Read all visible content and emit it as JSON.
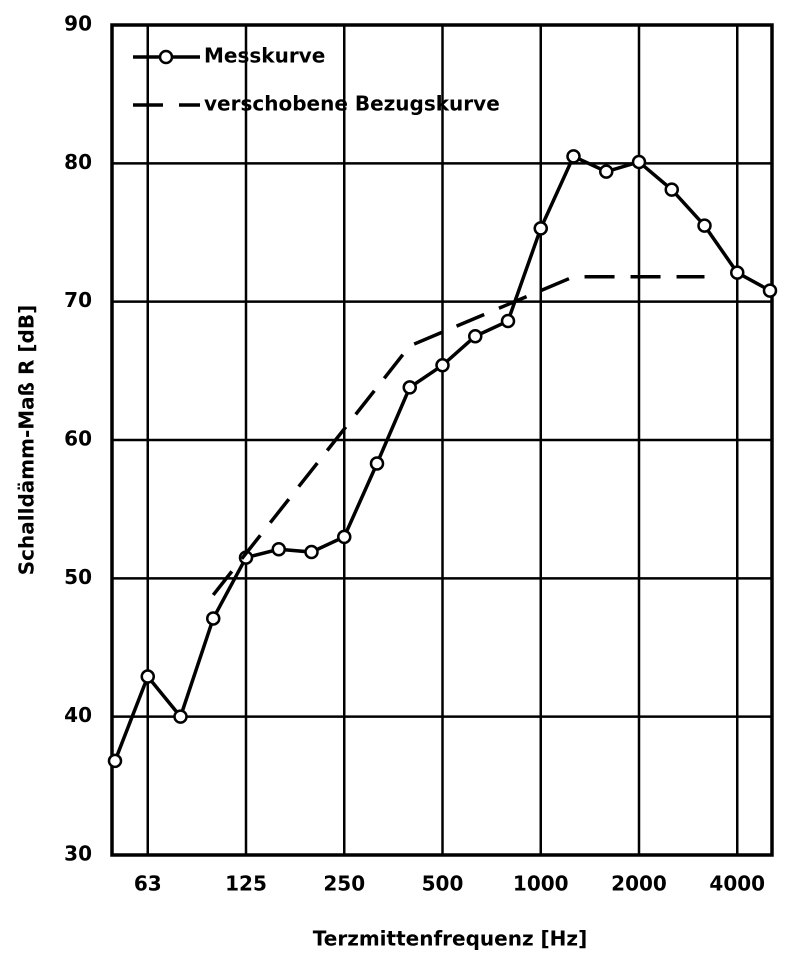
{
  "chart_data": {
    "type": "line",
    "x_label": "Terzmittenfrequenz [Hz]",
    "y_label": "Schalldämm-Maß R [dB]",
    "categories": [
      null,
      "63",
      null,
      null,
      "125",
      null,
      null,
      "250",
      null,
      null,
      "500",
      null,
      null,
      "1000",
      null,
      null,
      "2000",
      null,
      null,
      "4000",
      null
    ],
    "series": [
      {
        "name": "Messkurve",
        "color": "#000000",
        "style": "solid-marker",
        "values": [
          36.8,
          42.9,
          40.0,
          47.1,
          51.5,
          52.1,
          51.9,
          53.0,
          58.3,
          63.8,
          65.4,
          67.5,
          68.6,
          75.3,
          80.5,
          79.4,
          80.1,
          78.1,
          75.5,
          72.1,
          70.8
        ]
      },
      {
        "name": "verschobene Bezugskurve",
        "color": "#000000",
        "style": "dashed",
        "values": [
          null,
          null,
          null,
          48.8,
          51.8,
          54.8,
          57.8,
          60.8,
          63.8,
          66.8,
          67.8,
          68.8,
          69.8,
          70.8,
          71.8,
          71.8,
          71.8,
          71.8,
          71.8,
          null,
          null
        ]
      }
    ],
    "ylim": [
      30,
      90
    ],
    "yticks": [
      30,
      40,
      50,
      60,
      70,
      80,
      90
    ],
    "grid": true,
    "legend": "top-left"
  }
}
